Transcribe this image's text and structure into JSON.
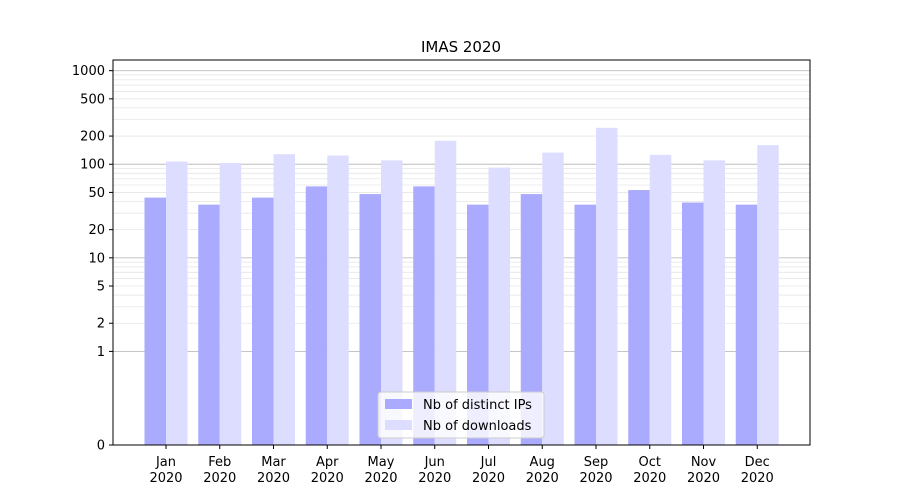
{
  "chart_data": {
    "type": "bar",
    "title": "IMAS 2020",
    "xlabel": "",
    "ylabel": "",
    "yscale": "symlog",
    "ylim": [
      0,
      1300
    ],
    "grid": "horizontal",
    "legend_position": "bottom-center",
    "categories": [
      "Jan\n2020",
      "Feb\n2020",
      "Mar\n2020",
      "Apr\n2020",
      "May\n2020",
      "Jun\n2020",
      "Jul\n2020",
      "Aug\n2020",
      "Sep\n2020",
      "Oct\n2020",
      "Nov\n2020",
      "Dec\n2020"
    ],
    "series": [
      {
        "name": "Nb of distinct IPs",
        "color": "#aaaaff",
        "values": [
          44,
          37,
          44,
          58,
          48,
          58,
          37,
          48,
          37,
          53,
          39,
          37
        ]
      },
      {
        "name": "Nb of downloads",
        "color": "#ddddff",
        "values": [
          107,
          103,
          128,
          124,
          110,
          178,
          92,
          133,
          245,
          126,
          110,
          160
        ]
      }
    ],
    "y_ticks": [
      {
        "value": 0,
        "label": "0"
      },
      {
        "value": 1,
        "label": "1"
      },
      {
        "value": 2,
        "label": "2"
      },
      {
        "value": 5,
        "label": "5"
      },
      {
        "value": 10,
        "label": "10"
      },
      {
        "value": 20,
        "label": "20"
      },
      {
        "value": 50,
        "label": "50"
      },
      {
        "value": 100,
        "label": "100"
      },
      {
        "value": 200,
        "label": "200"
      },
      {
        "value": 500,
        "label": "500"
      },
      {
        "value": 1000,
        "label": "1000"
      }
    ]
  }
}
